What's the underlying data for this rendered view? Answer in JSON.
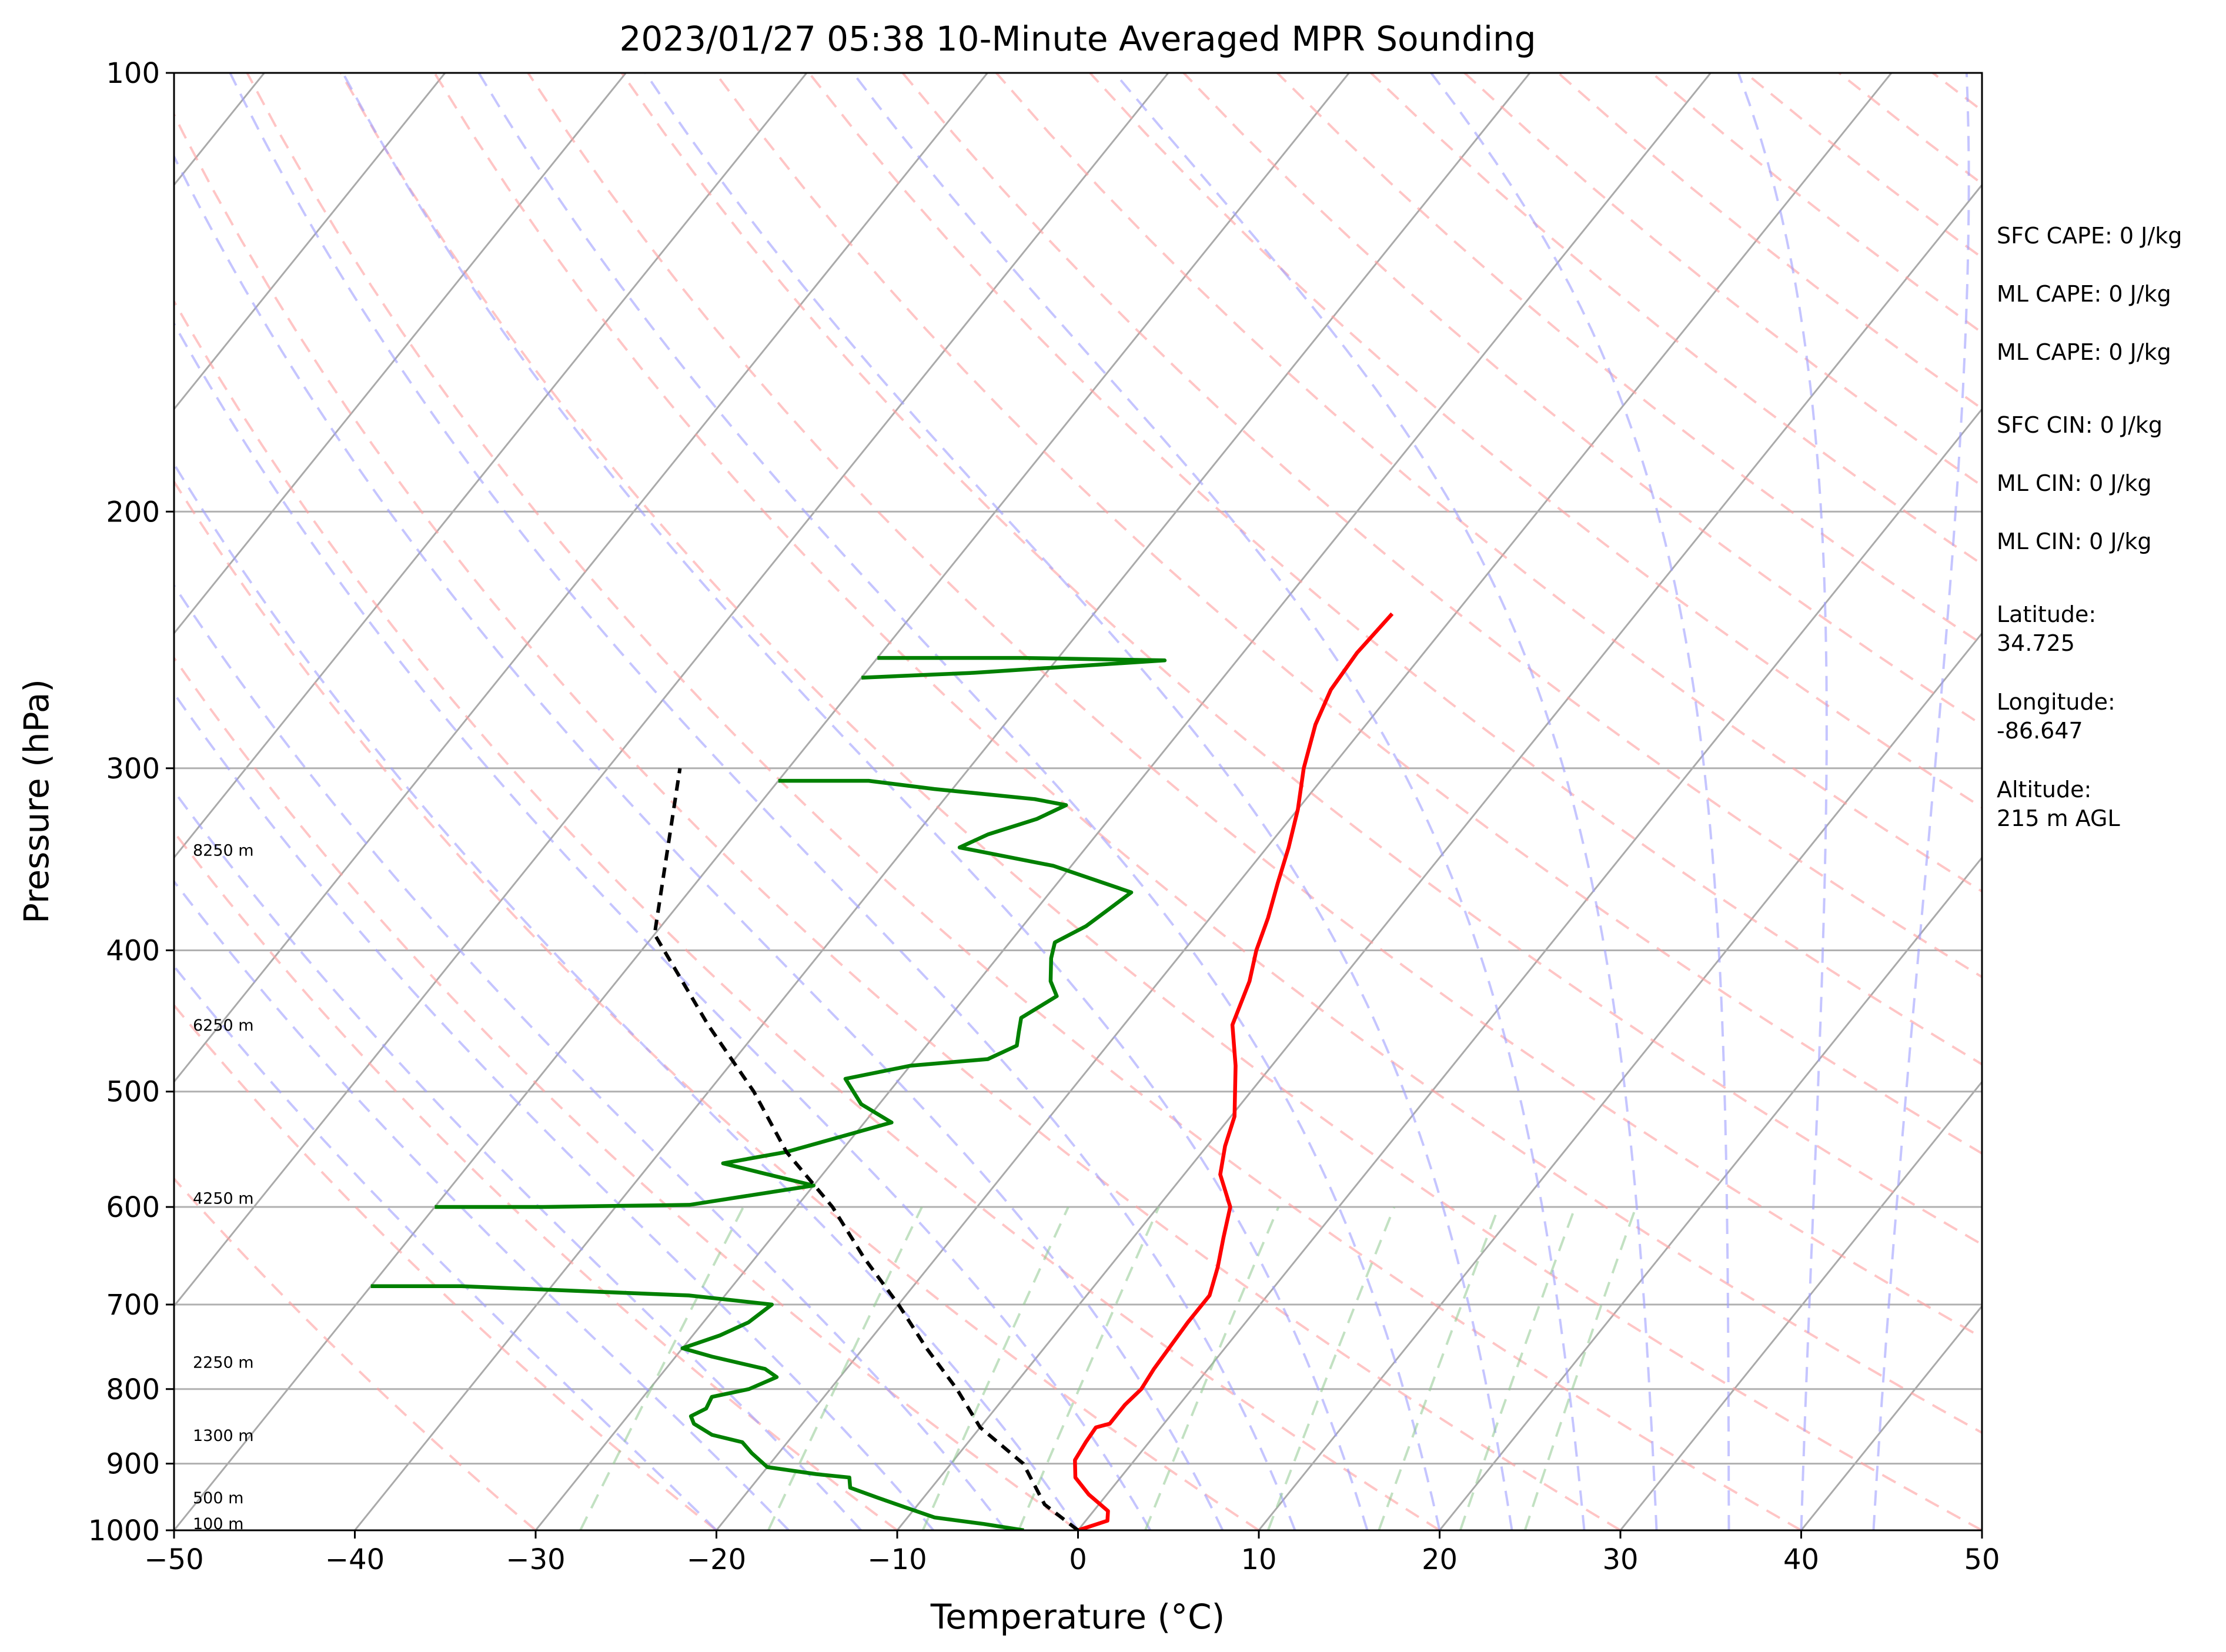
{
  "chart_data": {
    "type": "line",
    "title": "2023/01/27 05:38 10-Minute Averaged MPR Sounding",
    "xlabel": "Temperature (°C)",
    "ylabel": "Pressure (hPa)",
    "xlim": [
      -50,
      50
    ],
    "ylim": [
      1000,
      100
    ],
    "y_scale": "log",
    "x_ticks": [
      -50,
      -40,
      -30,
      -20,
      -10,
      0,
      10,
      20,
      30,
      40,
      50
    ],
    "x_tick_labels": [
      "−50",
      "−40",
      "−30",
      "−20",
      "−10",
      "0",
      "10",
      "20",
      "30",
      "40",
      "50"
    ],
    "y_ticks": [
      100,
      200,
      300,
      400,
      500,
      600,
      700,
      800,
      900,
      1000
    ],
    "y_tick_labels": [
      "100",
      "200",
      "300",
      "400",
      "500",
      "600",
      "700",
      "800",
      "900",
      "1000"
    ],
    "grid": true,
    "skew_isotherms": true,
    "dry_adiabats": true,
    "moist_adiabats": true,
    "mixing_ratio_lines": true,
    "series": [
      {
        "color": "#ff0000",
        "points": [
          [
            0.0,
            1000
          ],
          [
            1.2,
            985
          ],
          [
            0.8,
            970
          ],
          [
            -1.0,
            945
          ],
          [
            -2.5,
            920
          ],
          [
            -3.3,
            895
          ],
          [
            -3.5,
            870
          ],
          [
            -3.6,
            850
          ],
          [
            -3.0,
            845
          ],
          [
            -3.0,
            820
          ],
          [
            -2.8,
            800
          ],
          [
            -3.0,
            775
          ],
          [
            -3.2,
            720
          ],
          [
            -3.2,
            690
          ],
          [
            -4.0,
            660
          ],
          [
            -5.0,
            630
          ],
          [
            -6.0,
            600
          ],
          [
            -8.0,
            570
          ],
          [
            -9.0,
            545
          ],
          [
            -9.8,
            520
          ],
          [
            -12.0,
            480
          ],
          [
            -14.0,
            450
          ],
          [
            -15.0,
            420
          ],
          [
            -16.0,
            400
          ],
          [
            -16.8,
            380
          ],
          [
            -17.8,
            360
          ],
          [
            -18.8,
            340
          ],
          [
            -20.0,
            320
          ],
          [
            -21.5,
            300
          ],
          [
            -22.8,
            280
          ],
          [
            -23.5,
            265
          ],
          [
            -23.7,
            250
          ],
          [
            -23.5,
            235
          ]
        ]
      },
      {
        "color": "#008000",
        "points": [
          [
            -3.0,
            1000
          ],
          [
            -5.5,
            990
          ],
          [
            -8.5,
            980
          ],
          [
            -10.5,
            965
          ],
          [
            -12.5,
            950
          ],
          [
            -14.5,
            935
          ],
          [
            -15.0,
            920
          ],
          [
            -17.0,
            915
          ],
          [
            -20.0,
            905
          ],
          [
            -21.5,
            885
          ],
          [
            -22.5,
            870
          ],
          [
            -24.5,
            860
          ],
          [
            -26.0,
            845
          ],
          [
            -26.5,
            835
          ],
          [
            -26.0,
            825
          ],
          [
            -26.2,
            810
          ],
          [
            -24.5,
            800
          ],
          [
            -23.5,
            785
          ],
          [
            -24.5,
            775
          ],
          [
            -28.0,
            760
          ],
          [
            -30.0,
            750
          ],
          [
            -28.5,
            735
          ],
          [
            -27.5,
            720
          ],
          [
            -27.0,
            700
          ],
          [
            -32.0,
            690
          ],
          [
            -45.0,
            680
          ],
          [
            -50.0,
            680
          ]
        ]
      },
      {
        "color": "#008000",
        "points": [
          [
            -50.0,
            600
          ],
          [
            -44.0,
            600
          ],
          [
            -36.0,
            598
          ],
          [
            -30.0,
            580
          ],
          [
            -33.0,
            570
          ],
          [
            -36.0,
            560
          ],
          [
            -33.0,
            550
          ],
          [
            -28.5,
            525
          ],
          [
            -31.0,
            510
          ],
          [
            -33.0,
            490
          ],
          [
            -30.0,
            480
          ],
          [
            -26.0,
            475
          ],
          [
            -25.0,
            465
          ],
          [
            -25.5,
            455
          ],
          [
            -26.0,
            445
          ],
          [
            -25.0,
            430
          ],
          [
            -26.0,
            420
          ],
          [
            -27.0,
            405
          ],
          [
            -27.5,
            395
          ],
          [
            -26.5,
            385
          ],
          [
            -26.0,
            375
          ],
          [
            -25.5,
            365
          ],
          [
            -31.0,
            350
          ],
          [
            -37.0,
            340
          ],
          [
            -36.0,
            333
          ],
          [
            -34.0,
            325
          ],
          [
            -33.0,
            318
          ],
          [
            -35.0,
            315
          ],
          [
            -41.0,
            310
          ],
          [
            -45.0,
            306
          ],
          [
            -50.0,
            306
          ]
        ]
      },
      {
        "color": "#008000",
        "points": [
          [
            -50.0,
            260
          ],
          [
            -44.0,
            258
          ],
          [
            -34.0,
            253
          ],
          [
            -42.0,
            252
          ],
          [
            -50.0,
            252
          ]
        ]
      },
      {
        "color": "#000000",
        "dashed": true,
        "points": [
          [
            0.0,
            1000
          ],
          [
            -3.0,
            960
          ],
          [
            -6.0,
            900
          ],
          [
            -10.0,
            850
          ],
          [
            -13.0,
            800
          ],
          [
            -16.5,
            750
          ],
          [
            -20.0,
            700
          ],
          [
            -24.0,
            650
          ],
          [
            -28.0,
            600
          ],
          [
            -33.0,
            550
          ],
          [
            -37.5,
            500
          ],
          [
            -43.0,
            450
          ],
          [
            -50.0,
            390
          ],
          [
            -56.0,
            300
          ]
        ]
      }
    ],
    "height_labels": [
      "8250 m",
      "6250 m",
      "4250 m",
      "2250 m",
      "1300 m",
      "500 m",
      "100 m"
    ],
    "height_label_pressures": [
      345,
      455,
      598,
      775,
      870,
      960,
      1000
    ],
    "stats": [
      "SFC CAPE: 0 J/kg",
      "ML CAPE: 0 J/kg",
      "ML CAPE: 0 J/kg",
      "SFC CIN: 0 J/kg",
      "ML CIN: 0 J/kg",
      "ML CIN: 0 J/kg"
    ],
    "location": [
      [
        "Latitude:",
        "34.725"
      ],
      [
        "Longitude:",
        "-86.647"
      ],
      [
        "Altitude:",
        "215 m AGL"
      ]
    ]
  }
}
